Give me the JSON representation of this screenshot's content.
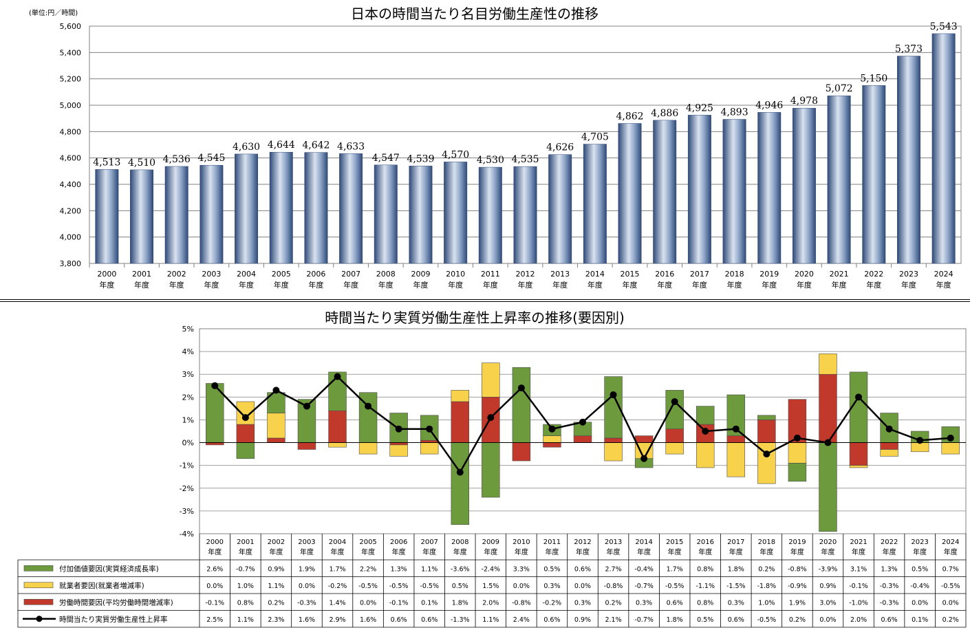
{
  "chart_data": [
    {
      "type": "bar",
      "title": "日本の時間当たり名目労働生産性の推移",
      "unit_label": "(単位:円／時間)",
      "categories": [
        "2000",
        "2001",
        "2002",
        "2003",
        "2004",
        "2005",
        "2006",
        "2007",
        "2008",
        "2009",
        "2010",
        "2011",
        "2012",
        "2013",
        "2014",
        "2015",
        "2016",
        "2017",
        "2018",
        "2019",
        "2020",
        "2021",
        "2022",
        "2023",
        "2024"
      ],
      "category_suffix": "年度",
      "values": [
        4513,
        4510,
        4536,
        4545,
        4630,
        4644,
        4642,
        4633,
        4547,
        4539,
        4570,
        4530,
        4535,
        4626,
        4705,
        4862,
        4886,
        4925,
        4893,
        4946,
        4978,
        5072,
        5150,
        5373,
        5543
      ],
      "value_labels": [
        "4,513",
        "4,510",
        "4,536",
        "4,545",
        "4,630",
        "4,644",
        "4,642",
        "4,633",
        "4,547",
        "4,539",
        "4,570",
        "4,530",
        "4,535",
        "4,626",
        "4,705",
        "4,862",
        "4,886",
        "4,925",
        "4,893",
        "4,946",
        "4,978",
        "5,072",
        "5,150",
        "5,373",
        "5,543"
      ],
      "ylim": [
        3800,
        5600
      ],
      "yticks": [
        "3,800",
        "4,000",
        "4,200",
        "4,400",
        "4,600",
        "4,800",
        "5,000",
        "5,200",
        "5,400",
        "5,600"
      ],
      "grid": true,
      "colors": {
        "bar_dark": "#2f4a78",
        "bar_mid": "#8fa6c8",
        "bar_light": "#d9e2ef"
      }
    },
    {
      "type": "bar",
      "stacked": true,
      "title": "時間当たり実質労働生産性上昇率の推移(要因別)",
      "categories": [
        "2000",
        "2001",
        "2002",
        "2003",
        "2004",
        "2005",
        "2006",
        "2007",
        "2008",
        "2009",
        "2010",
        "2011",
        "2012",
        "2013",
        "2014",
        "2015",
        "2016",
        "2017",
        "2018",
        "2019",
        "2020",
        "2021",
        "2022",
        "2023",
        "2024"
      ],
      "category_suffix": "年度",
      "ylim": [
        -4,
        5
      ],
      "yticks": [
        "-4%",
        "-3%",
        "-2%",
        "-1%",
        "0%",
        "1%",
        "2%",
        "3%",
        "4%",
        "5%"
      ],
      "grid": true,
      "series": [
        {
          "name": "付加価値要因(実質経済成長率)",
          "kind": "bar",
          "color": "#6e9a3e",
          "values": [
            2.6,
            -0.7,
            0.9,
            1.9,
            1.7,
            2.2,
            1.3,
            1.1,
            -3.6,
            -2.4,
            3.3,
            0.5,
            0.6,
            2.7,
            -0.4,
            1.7,
            0.8,
            1.8,
            0.2,
            -0.8,
            -3.9,
            3.1,
            1.3,
            0.5,
            0.7
          ],
          "labels": [
            "2.6%",
            "-0.7%",
            "0.9%",
            "1.9%",
            "1.7%",
            "2.2%",
            "1.3%",
            "1.1%",
            "-3.6%",
            "-2.4%",
            "3.3%",
            "0.5%",
            "0.6%",
            "2.7%",
            "-0.4%",
            "1.7%",
            "0.8%",
            "1.8%",
            "0.2%",
            "-0.8%",
            "-3.9%",
            "3.1%",
            "1.3%",
            "0.5%",
            "0.7%"
          ]
        },
        {
          "name": "就業者要因(就業者増減率)",
          "kind": "bar",
          "color": "#f7d24a",
          "values": [
            0.0,
            1.0,
            1.1,
            0.0,
            -0.2,
            -0.5,
            -0.5,
            -0.5,
            0.5,
            1.5,
            0.0,
            0.3,
            0.0,
            -0.8,
            -0.7,
            -0.5,
            -1.1,
            -1.5,
            -1.8,
            -0.9,
            0.9,
            -0.1,
            -0.3,
            -0.4,
            -0.5
          ],
          "labels": [
            "0.0%",
            "1.0%",
            "1.1%",
            "0.0%",
            "-0.2%",
            "-0.5%",
            "-0.5%",
            "-0.5%",
            "0.5%",
            "1.5%",
            "0.0%",
            "0.3%",
            "0.0%",
            "-0.8%",
            "-0.7%",
            "-0.5%",
            "-1.1%",
            "-1.5%",
            "-1.8%",
            "-0.9%",
            "0.9%",
            "-0.1%",
            "-0.3%",
            "-0.4%",
            "-0.5%"
          ]
        },
        {
          "name": "労働時間要因(平均労働時間増減率)",
          "kind": "bar",
          "color": "#c0392b",
          "values": [
            -0.1,
            0.8,
            0.2,
            -0.3,
            1.4,
            0.0,
            -0.1,
            0.1,
            1.8,
            2.0,
            -0.8,
            -0.2,
            0.3,
            0.2,
            0.3,
            0.6,
            0.8,
            0.3,
            1.0,
            1.9,
            3.0,
            -1.0,
            -0.3,
            0.0,
            0.0
          ],
          "labels": [
            "-0.1%",
            "0.8%",
            "0.2%",
            "-0.3%",
            "1.4%",
            "0.0%",
            "-0.1%",
            "0.1%",
            "1.8%",
            "2.0%",
            "-0.8%",
            "-0.2%",
            "0.3%",
            "0.2%",
            "0.3%",
            "0.6%",
            "0.8%",
            "0.3%",
            "1.0%",
            "1.9%",
            "3.0%",
            "-1.0%",
            "-0.3%",
            "0.0%",
            "0.0%"
          ]
        },
        {
          "name": "時間当たり実質労働生産性上昇率",
          "kind": "line",
          "color": "#000000",
          "values": [
            2.5,
            1.1,
            2.3,
            1.6,
            2.9,
            1.6,
            0.6,
            0.6,
            -1.3,
            1.1,
            2.4,
            0.6,
            0.9,
            2.1,
            -0.7,
            1.8,
            0.5,
            0.6,
            -0.5,
            0.2,
            0.0,
            2.0,
            0.6,
            0.1,
            0.2
          ],
          "labels": [
            "2.5%",
            "1.1%",
            "2.3%",
            "1.6%",
            "2.9%",
            "1.6%",
            "0.6%",
            "0.6%",
            "-1.3%",
            "1.1%",
            "2.4%",
            "0.6%",
            "0.9%",
            "2.1%",
            "-0.7%",
            "1.8%",
            "0.5%",
            "0.6%",
            "-0.5%",
            "0.2%",
            "0.0%",
            "2.0%",
            "0.6%",
            "0.1%",
            "0.2%"
          ]
        }
      ]
    }
  ]
}
